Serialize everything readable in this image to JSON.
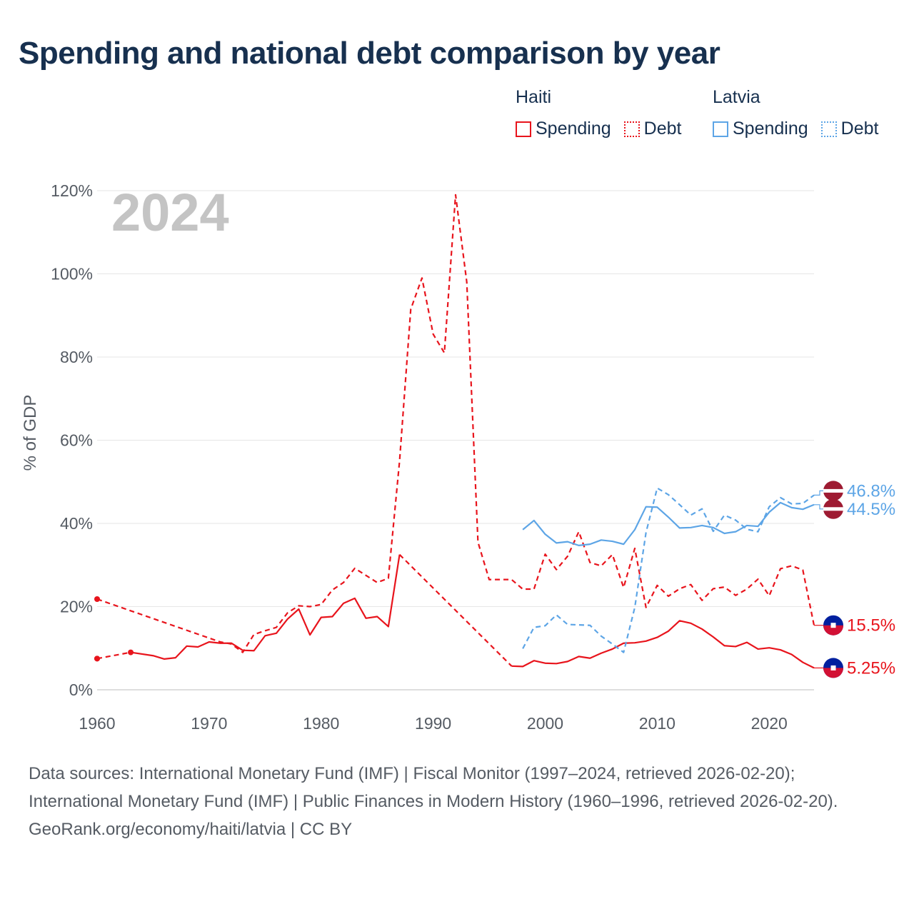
{
  "title": "Spending and national debt comparison by year",
  "legend": {
    "groups": [
      {
        "name": "Haiti",
        "color": "#e8141c",
        "items": [
          "Spending",
          "Debt"
        ]
      },
      {
        "name": "Latvia",
        "color": "#5da5e6",
        "items": [
          "Spending",
          "Debt"
        ]
      }
    ]
  },
  "footer": {
    "sources": "Data sources: International Monetary Fund (IMF) | Fiscal Monitor (1997–2024, retrieved 2026-02-20); International Monetary Fund (IMF) | Public Finances in Modern History (1960–1996, retrieved 2026-02-20).",
    "credit": "GeoRank.org/economy/haiti/latvia | CC BY"
  },
  "chart_data": {
    "type": "line",
    "title": "Spending and national debt comparison by year",
    "year_label": "2024",
    "ylabel": "% of GDP",
    "xlabel": "",
    "xlim": [
      1960,
      2024
    ],
    "ylim": [
      0,
      120
    ],
    "x_ticks": [
      "1960",
      "1970",
      "1980",
      "1990",
      "2000",
      "2010",
      "2020"
    ],
    "y_ticks": [
      "0%",
      "20%",
      "40%",
      "60%",
      "80%",
      "100%",
      "120%"
    ],
    "colors": {
      "haiti": "#e8141c",
      "latvia": "#5da5e6"
    },
    "series": [
      {
        "name": "Haiti Spending",
        "country": "haiti",
        "style": "solid",
        "end_label": "5.25%",
        "end_value": 5.25,
        "points": [
          [
            1960,
            7.5
          ],
          [
            1963,
            9
          ],
          [
            1965,
            8.2
          ],
          [
            1966,
            7.4
          ],
          [
            1967,
            7.7
          ],
          [
            1968,
            10.5
          ],
          [
            1969,
            10.3
          ],
          [
            1970,
            11.5
          ],
          [
            1971,
            11.2
          ],
          [
            1972,
            11.2
          ],
          [
            1973,
            9.5
          ],
          [
            1974,
            9.4
          ],
          [
            1975,
            13
          ],
          [
            1976,
            13.6
          ],
          [
            1977,
            17
          ],
          [
            1978,
            19.4
          ],
          [
            1979,
            13.2
          ],
          [
            1980,
            17.4
          ],
          [
            1981,
            17.6
          ],
          [
            1982,
            20.8
          ],
          [
            1983,
            22
          ],
          [
            1984,
            17.2
          ],
          [
            1985,
            17.6
          ],
          [
            1986,
            15.2
          ],
          [
            1987,
            32.5
          ],
          [
            1997,
            5.7
          ],
          [
            1998,
            5.6
          ],
          [
            1999,
            7
          ],
          [
            2000,
            6.4
          ],
          [
            2001,
            6.3
          ],
          [
            2002,
            6.8
          ],
          [
            2003,
            8
          ],
          [
            2004,
            7.6
          ],
          [
            2005,
            8.8
          ],
          [
            2006,
            9.8
          ],
          [
            2007,
            11.2
          ],
          [
            2008,
            11.3
          ],
          [
            2009,
            11.7
          ],
          [
            2010,
            12.6
          ],
          [
            2011,
            14.1
          ],
          [
            2012,
            16.6
          ],
          [
            2013,
            16
          ],
          [
            2014,
            14.6
          ],
          [
            2015,
            12.7
          ],
          [
            2016,
            10.6
          ],
          [
            2017,
            10.4
          ],
          [
            2018,
            11.4
          ],
          [
            2019,
            9.8
          ],
          [
            2020,
            10.1
          ],
          [
            2021,
            9.6
          ],
          [
            2022,
            8.5
          ],
          [
            2023,
            6.6
          ],
          [
            2024,
            5.25
          ]
        ],
        "dashed_gaps": [
          [
            1960,
            1963
          ],
          [
            1987,
            1997
          ]
        ]
      },
      {
        "name": "Haiti Debt",
        "country": "haiti",
        "style": "dashed",
        "end_label": "15.5%",
        "end_value": 15.5,
        "points": [
          [
            1960,
            21.8
          ],
          [
            1971,
            11.5
          ],
          [
            1972,
            11
          ],
          [
            1973,
            9
          ],
          [
            1974,
            13.3
          ],
          [
            1975,
            14.2
          ],
          [
            1976,
            15
          ],
          [
            1977,
            18.5
          ],
          [
            1978,
            20.2
          ],
          [
            1979,
            20
          ],
          [
            1980,
            20.5
          ],
          [
            1981,
            24
          ],
          [
            1982,
            25.8
          ],
          [
            1983,
            29.2
          ],
          [
            1984,
            27.5
          ],
          [
            1985,
            25.8
          ],
          [
            1986,
            26.8
          ],
          [
            1987,
            55
          ],
          [
            1988,
            91.5
          ],
          [
            1989,
            99
          ],
          [
            1990,
            85.5
          ],
          [
            1991,
            81
          ],
          [
            1992,
            119
          ],
          [
            1993,
            98
          ],
          [
            1994,
            35.5
          ],
          [
            1995,
            26.5
          ],
          [
            1996,
            26.5
          ],
          [
            1997,
            26.5
          ],
          [
            1998,
            24.2
          ],
          [
            1999,
            24.2
          ],
          [
            2000,
            32.6
          ],
          [
            2001,
            28.9
          ],
          [
            2002,
            32.1
          ],
          [
            2003,
            38
          ],
          [
            2004,
            30.6
          ],
          [
            2005,
            29.8
          ],
          [
            2006,
            32.5
          ],
          [
            2007,
            24.6
          ],
          [
            2008,
            34
          ],
          [
            2009,
            19.8
          ],
          [
            2010,
            25.1
          ],
          [
            2011,
            22.5
          ],
          [
            2012,
            24.3
          ],
          [
            2013,
            25.3
          ],
          [
            2014,
            21.5
          ],
          [
            2015,
            24.3
          ],
          [
            2016,
            24.7
          ],
          [
            2017,
            22.7
          ],
          [
            2018,
            24.2
          ],
          [
            2019,
            26.6
          ],
          [
            2020,
            22.6
          ],
          [
            2021,
            29.1
          ],
          [
            2022,
            29.8
          ],
          [
            2023,
            28.8
          ],
          [
            2024,
            15.5
          ]
        ],
        "dashed_gaps": []
      },
      {
        "name": "Latvia Spending",
        "country": "latvia",
        "style": "solid",
        "end_label": "44.5%",
        "end_value": 44.5,
        "points": [
          [
            1998,
            38.5
          ],
          [
            1999,
            40.7
          ],
          [
            2000,
            37.4
          ],
          [
            2001,
            35.3
          ],
          [
            2002,
            35.6
          ],
          [
            2003,
            34.7
          ],
          [
            2004,
            35
          ],
          [
            2005,
            36
          ],
          [
            2006,
            35.7
          ],
          [
            2007,
            35
          ],
          [
            2008,
            38.5
          ],
          [
            2009,
            44
          ],
          [
            2010,
            43.9
          ],
          [
            2011,
            41.5
          ],
          [
            2012,
            38.9
          ],
          [
            2013,
            39
          ],
          [
            2014,
            39.5
          ],
          [
            2015,
            39
          ],
          [
            2016,
            37.6
          ],
          [
            2017,
            38
          ],
          [
            2018,
            39.5
          ],
          [
            2019,
            39.3
          ],
          [
            2020,
            42.7
          ],
          [
            2021,
            45
          ],
          [
            2022,
            43.8
          ],
          [
            2023,
            43.4
          ],
          [
            2024,
            44.5
          ]
        ],
        "dashed_gaps": []
      },
      {
        "name": "Latvia Debt",
        "country": "latvia",
        "style": "dashed",
        "end_label": "46.8%",
        "end_value": 46.8,
        "points": [
          [
            1998,
            9.9
          ],
          [
            1999,
            15
          ],
          [
            2000,
            15.4
          ],
          [
            2001,
            18
          ],
          [
            2002,
            15.7
          ],
          [
            2003,
            15.6
          ],
          [
            2004,
            15.5
          ],
          [
            2005,
            12.9
          ],
          [
            2006,
            11
          ],
          [
            2007,
            9
          ],
          [
            2008,
            19.8
          ],
          [
            2009,
            37.8
          ],
          [
            2010,
            48.5
          ],
          [
            2011,
            46.9
          ],
          [
            2012,
            44.5
          ],
          [
            2013,
            42
          ],
          [
            2014,
            43.5
          ],
          [
            2015,
            38.1
          ],
          [
            2016,
            42
          ],
          [
            2017,
            40.8
          ],
          [
            2018,
            38.6
          ],
          [
            2019,
            38
          ],
          [
            2020,
            44
          ],
          [
            2021,
            46.2
          ],
          [
            2022,
            44.7
          ],
          [
            2023,
            44.8
          ],
          [
            2024,
            46.8
          ]
        ],
        "dashed_gaps": []
      }
    ]
  }
}
